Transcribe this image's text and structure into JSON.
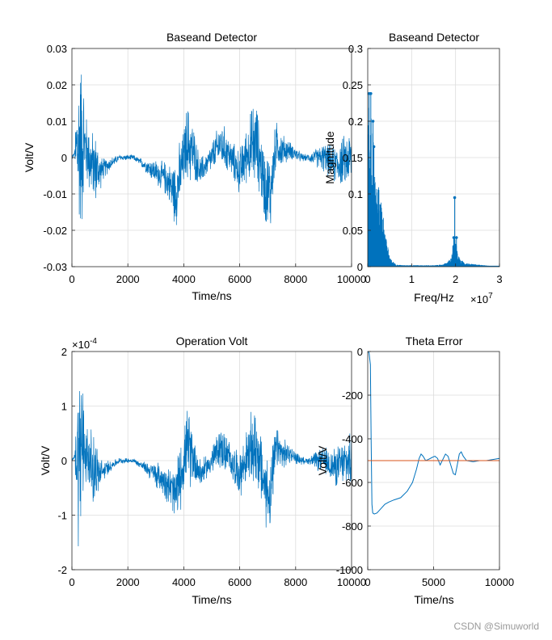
{
  "watermark": "CSDN @Simuworld",
  "colors": {
    "series": "#0072BD",
    "reference": "#D95319",
    "grid": "#dcdcdc",
    "axis": "#262626"
  },
  "chart_data": [
    {
      "id": "ax1",
      "type": "line",
      "title": "Baseand Detector",
      "xlabel": "Time/ns",
      "ylabel": "Volt/V",
      "xlim": [
        0,
        10000
      ],
      "ylim": [
        -0.03,
        0.03
      ],
      "xticks": [
        "0",
        "2000",
        "4000",
        "6000",
        "8000",
        "10000"
      ],
      "yticks": [
        "-0.03",
        "-0.02",
        "-0.01",
        "0",
        "0.01",
        "0.02",
        "0.03"
      ],
      "grid": true,
      "series": [
        {
          "name": "signal",
          "style": "noisy",
          "scale": 0.02,
          "envelope": [
            [
              0,
              0.001
            ],
            [
              60,
              0.001
            ],
            [
              50,
              0.0
            ],
            [
              100,
              0.001
            ],
            [
              200,
              0.03
            ],
            [
              300,
              0.03
            ],
            [
              400,
              0.03
            ],
            [
              450,
              0.012
            ],
            [
              520,
              0.012
            ],
            [
              700,
              0.012
            ],
            [
              850,
              0.012
            ],
            [
              950,
              0.008
            ],
            [
              1100,
              0.004
            ],
            [
              1400,
              0.002
            ],
            [
              1700,
              0.001
            ],
            [
              2000,
              0.001
            ],
            [
              2300,
              0.001
            ],
            [
              2600,
              0.002
            ],
            [
              2900,
              0.004
            ],
            [
              3200,
              0.005
            ],
            [
              3500,
              0.007
            ],
            [
              3700,
              0.012
            ],
            [
              3850,
              0.012
            ],
            [
              4000,
              0.01
            ],
            [
              4150,
              0.014
            ],
            [
              4300,
              0.011
            ],
            [
              4500,
              0.006
            ],
            [
              4800,
              0.004
            ],
            [
              5100,
              0.006
            ],
            [
              5400,
              0.008
            ],
            [
              5700,
              0.006
            ],
            [
              6000,
              0.008
            ],
            [
              6300,
              0.01
            ],
            [
              6500,
              0.016
            ],
            [
              6700,
              0.012
            ],
            [
              6900,
              0.013
            ],
            [
              7050,
              0.014
            ],
            [
              7300,
              0.008
            ],
            [
              7500,
              0.006
            ],
            [
              7800,
              0.003
            ],
            [
              8100,
              0.002
            ],
            [
              8400,
              0.001
            ],
            [
              8700,
              0.003
            ],
            [
              9000,
              0.005
            ],
            [
              9300,
              0.006
            ],
            [
              9600,
              0.008
            ],
            [
              10000,
              0.01
            ]
          ],
          "trend": [
            [
              0,
              0
            ],
            [
              400,
              0.005
            ],
            [
              700,
              -0.002
            ],
            [
              1000,
              -0.004
            ],
            [
              1300,
              -0.002
            ],
            [
              1700,
              0.0
            ],
            [
              2200,
              0.0
            ],
            [
              2600,
              -0.002
            ],
            [
              3000,
              -0.004
            ],
            [
              3400,
              -0.006
            ],
            [
              3700,
              -0.01
            ],
            [
              3900,
              -0.004
            ],
            [
              4100,
              0.004
            ],
            [
              4300,
              0.002
            ],
            [
              4600,
              -0.004
            ],
            [
              5000,
              0.0
            ],
            [
              5300,
              0.004
            ],
            [
              5600,
              0.001
            ],
            [
              6000,
              -0.004
            ],
            [
              6300,
              0.002
            ],
            [
              6600,
              0.004
            ],
            [
              6900,
              -0.008
            ],
            [
              7100,
              -0.01
            ],
            [
              7300,
              0.004
            ],
            [
              7500,
              0.002
            ],
            [
              7800,
              0.002
            ],
            [
              8200,
              0.0
            ],
            [
              8600,
              0.0
            ],
            [
              9000,
              0.0
            ],
            [
              9400,
              -0.002
            ],
            [
              10000,
              0.0
            ]
          ]
        }
      ]
    },
    {
      "id": "ax2",
      "type": "line",
      "title": "Baseand Detector",
      "xlabel": "Freq/Hz",
      "ylabel": "Magnitude",
      "xlim": [
        0,
        3
      ],
      "ylim": [
        0,
        0.3
      ],
      "xticks": [
        "0",
        "1",
        "2",
        "3"
      ],
      "yticks": [
        "0",
        "0.05",
        "0.1",
        "0.15",
        "0.2",
        "0.25",
        "0.3"
      ],
      "exponent_base": "×10",
      "exponent_power": "7",
      "grid": true,
      "series": [
        {
          "name": "spectrum",
          "style": "spectrum",
          "envelope": [
            [
              0,
              0.24
            ],
            [
              0.02,
              0.24
            ],
            [
              0.04,
              0.22
            ],
            [
              0.1,
              0.2
            ],
            [
              0.15,
              0.16
            ],
            [
              0.2,
              0.13
            ],
            [
              0.25,
              0.11
            ],
            [
              0.3,
              0.09
            ],
            [
              0.35,
              0.07
            ],
            [
              0.4,
              0.05
            ],
            [
              0.45,
              0.03
            ],
            [
              0.5,
              0.015
            ],
            [
              0.55,
              0.008
            ],
            [
              0.65,
              0.003
            ],
            [
              0.8,
              0.002
            ],
            [
              1.0,
              0.002
            ],
            [
              1.5,
              0.002
            ],
            [
              1.7,
              0.003
            ],
            [
              1.8,
              0.006
            ],
            [
              1.9,
              0.012
            ],
            [
              1.95,
              0.035
            ],
            [
              2.0,
              0.04
            ],
            [
              2.05,
              0.015
            ],
            [
              2.2,
              0.005
            ],
            [
              2.5,
              0.003
            ],
            [
              2.8,
              0.001
            ],
            [
              3.0,
              0.001
            ]
          ],
          "peaks": [
            [
              0.03,
              0.238
            ],
            [
              0.07,
              0.238
            ],
            [
              0.12,
              0.2
            ],
            [
              0.14,
              0.165
            ],
            [
              1.98,
              0.095
            ],
            [
              1.96,
              0.04
            ],
            [
              2.02,
              0.04
            ]
          ]
        }
      ]
    },
    {
      "id": "ax3",
      "type": "line",
      "title": "Operation Volt",
      "xlabel": "Time/ns",
      "ylabel": "Volt/V",
      "xlim": [
        0,
        10000
      ],
      "ylim": [
        -2,
        2
      ],
      "xticks": [
        "0",
        "2000",
        "4000",
        "6000",
        "8000",
        "10000"
      ],
      "yticks": [
        "-2",
        "-1",
        "0",
        "1",
        "2"
      ],
      "exponent_base": "×10",
      "exponent_power": "-4",
      "grid": true,
      "series": [
        {
          "name": "signal",
          "style": "noisy",
          "scale": 1,
          "envelope": [
            [
              0,
              0.05
            ],
            [
              100,
              0.05
            ],
            [
              200,
              2
            ],
            [
              300,
              2
            ],
            [
              400,
              2
            ],
            [
              450,
              0.8
            ],
            [
              520,
              0.8
            ],
            [
              700,
              0.8
            ],
            [
              850,
              0.8
            ],
            [
              950,
              0.5
            ],
            [
              1100,
              0.25
            ],
            [
              1400,
              0.12
            ],
            [
              1700,
              0.06
            ],
            [
              2000,
              0.06
            ],
            [
              2300,
              0.06
            ],
            [
              2600,
              0.12
            ],
            [
              2900,
              0.25
            ],
            [
              3200,
              0.35
            ],
            [
              3500,
              0.45
            ],
            [
              3700,
              0.75
            ],
            [
              3850,
              0.75
            ],
            [
              4000,
              0.65
            ],
            [
              4150,
              0.9
            ],
            [
              4300,
              0.7
            ],
            [
              4500,
              0.4
            ],
            [
              4800,
              0.25
            ],
            [
              5100,
              0.4
            ],
            [
              5400,
              0.5
            ],
            [
              5700,
              0.4
            ],
            [
              6000,
              0.5
            ],
            [
              6300,
              0.65
            ],
            [
              6500,
              1.0
            ],
            [
              6700,
              0.8
            ],
            [
              6900,
              0.85
            ],
            [
              7050,
              0.9
            ],
            [
              7300,
              0.5
            ],
            [
              7500,
              0.4
            ],
            [
              7800,
              0.2
            ],
            [
              8100,
              0.12
            ],
            [
              8400,
              0.06
            ],
            [
              8700,
              0.2
            ],
            [
              9000,
              0.3
            ],
            [
              9300,
              0.4
            ],
            [
              9600,
              0.5
            ],
            [
              10000,
              0.6
            ]
          ],
          "trend": [
            [
              0,
              0
            ],
            [
              400,
              0.3
            ],
            [
              700,
              -0.12
            ],
            [
              1000,
              -0.25
            ],
            [
              1300,
              -0.12
            ],
            [
              1700,
              0.0
            ],
            [
              2200,
              0.0
            ],
            [
              2600,
              -0.12
            ],
            [
              3000,
              -0.25
            ],
            [
              3400,
              -0.4
            ],
            [
              3700,
              -0.65
            ],
            [
              3900,
              -0.25
            ],
            [
              4100,
              0.25
            ],
            [
              4300,
              0.12
            ],
            [
              4600,
              -0.25
            ],
            [
              5000,
              0.0
            ],
            [
              5300,
              0.25
            ],
            [
              5600,
              0.06
            ],
            [
              6000,
              -0.25
            ],
            [
              6300,
              0.12
            ],
            [
              6600,
              0.25
            ],
            [
              6900,
              -0.5
            ],
            [
              7100,
              -0.65
            ],
            [
              7300,
              0.25
            ],
            [
              7500,
              0.12
            ],
            [
              7800,
              0.12
            ],
            [
              8200,
              0.0
            ],
            [
              8600,
              0.0
            ],
            [
              9000,
              0.0
            ],
            [
              9400,
              -0.12
            ],
            [
              10000,
              0.0
            ]
          ]
        }
      ]
    },
    {
      "id": "ax4",
      "type": "line",
      "title": "Theta Error",
      "xlabel": "Time/ns",
      "ylabel": "Volt/V",
      "xlim": [
        0,
        10000
      ],
      "ylim": [
        -1000,
        0
      ],
      "xticks": [
        "0",
        "5000",
        "10000"
      ],
      "yticks": [
        "-1000",
        "-800",
        "-600",
        "-400",
        "-200",
        "0"
      ],
      "grid": true,
      "series": [
        {
          "name": "theta",
          "style": "smooth",
          "points": [
            [
              0,
              0
            ],
            [
              100,
              -5
            ],
            [
              200,
              -60
            ],
            [
              260,
              -400
            ],
            [
              320,
              -700
            ],
            [
              380,
              -740
            ],
            [
              500,
              -745
            ],
            [
              700,
              -740
            ],
            [
              1000,
              -720
            ],
            [
              1300,
              -700
            ],
            [
              1600,
              -690
            ],
            [
              2000,
              -680
            ],
            [
              2500,
              -670
            ],
            [
              3000,
              -640
            ],
            [
              3400,
              -600
            ],
            [
              3700,
              -540
            ],
            [
              3900,
              -490
            ],
            [
              4050,
              -470
            ],
            [
              4200,
              -480
            ],
            [
              4400,
              -500
            ],
            [
              4600,
              -495
            ],
            [
              4900,
              -485
            ],
            [
              5100,
              -480
            ],
            [
              5300,
              -490
            ],
            [
              5500,
              -520
            ],
            [
              5700,
              -495
            ],
            [
              5900,
              -470
            ],
            [
              6100,
              -480
            ],
            [
              6300,
              -520
            ],
            [
              6500,
              -560
            ],
            [
              6650,
              -565
            ],
            [
              6800,
              -520
            ],
            [
              6950,
              -470
            ],
            [
              7100,
              -460
            ],
            [
              7250,
              -480
            ],
            [
              7500,
              -500
            ],
            [
              8000,
              -505
            ],
            [
              8500,
              -500
            ],
            [
              9000,
              -500
            ],
            [
              9500,
              -495
            ],
            [
              10000,
              -490
            ]
          ]
        },
        {
          "name": "reference",
          "style": "line",
          "color": "reference",
          "points": [
            [
              0,
              -500
            ],
            [
              10000,
              -500
            ]
          ]
        }
      ]
    }
  ]
}
